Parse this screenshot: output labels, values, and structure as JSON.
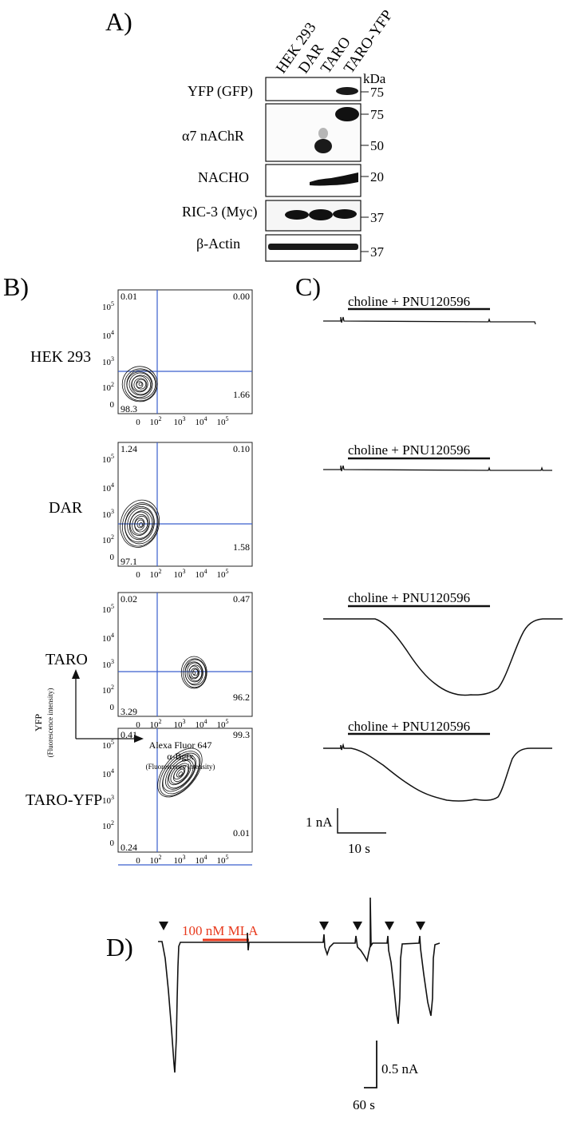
{
  "panelA": {
    "letter": "A)",
    "lanes": [
      "HEK 293",
      "DAR",
      "TARO",
      "TARO-YFP"
    ],
    "kda_label": "kDa",
    "blots": [
      {
        "label": "YFP (GFP)",
        "markers": [
          "75"
        ]
      },
      {
        "label": "α7 nAChR",
        "markers": [
          "75",
          "50"
        ]
      },
      {
        "label": "NACHO",
        "markers": [
          "20"
        ]
      },
      {
        "label": "RIC-3 (Myc)",
        "markers": [
          "37"
        ]
      },
      {
        "label": "β-Actin",
        "markers": [
          "37"
        ]
      }
    ]
  },
  "panelB": {
    "letter": "B)",
    "tick_labels": [
      "0",
      "10",
      "10",
      "10",
      "10"
    ],
    "tick_exps": [
      "",
      "2",
      "3",
      "4",
      "5"
    ],
    "plots": [
      {
        "condition": "HEK 293",
        "q_ul": "0.01",
        "q_ur": "0.00",
        "q_ll": "98.3",
        "q_lr": "1.66"
      },
      {
        "condition": "DAR",
        "q_ul": "1.24",
        "q_ur": "0.10",
        "q_ll": "97.1",
        "q_lr": "1.58"
      },
      {
        "condition": "TARO",
        "q_ul": "0.02",
        "q_ur": "0.47",
        "q_ll": "3.29",
        "q_lr": "96.2"
      },
      {
        "condition": "TARO-YFP",
        "q_ul": "0.41",
        "q_ur": "99.3",
        "q_ll": "0.24",
        "q_lr": "0.01"
      }
    ],
    "y_axis_label": "YFP",
    "y_axis_sub": "(Fluorescence intensity)",
    "x_axis_label_1": "Alexa Fluor 647",
    "x_axis_label_2": "α-Bgtx",
    "x_axis_sub": "(Fluorescence intensity)"
  },
  "panelC": {
    "letter": "C)",
    "traces": [
      {
        "label": "choline + PNU120596"
      },
      {
        "label": "choline + PNU120596"
      },
      {
        "label": "choline + PNU120596"
      },
      {
        "label": "choline + PNU120596"
      }
    ],
    "scale_y": "1 nA",
    "scale_x": "10 s"
  },
  "panelD": {
    "letter": "D)",
    "drug_label": "100 nM MLA",
    "drug_color": "#e8391c",
    "scale_y": "0.5 nA",
    "scale_x": "60 s"
  },
  "colors": {
    "gate": "#3a5fcd",
    "ink": "#111111"
  }
}
